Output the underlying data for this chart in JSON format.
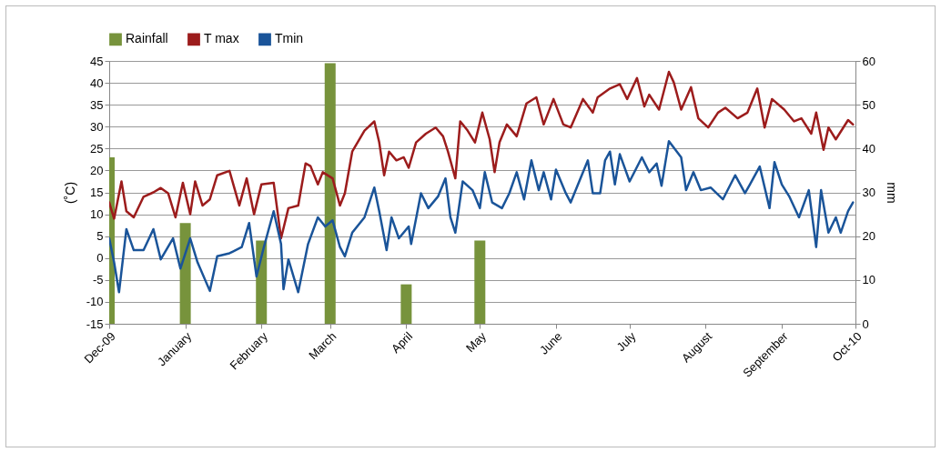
{
  "chart_data": {
    "type": "line",
    "ylabel": "(˚C)",
    "y2label": "mm",
    "legend": "top",
    "grid": "y",
    "xlim": [
      "2009-12-01",
      "2010-10-01"
    ],
    "xticks": [
      {
        "value": "2009-12-01",
        "label": "Dec-09"
      },
      {
        "value": "2010-01-01",
        "label": "January"
      },
      {
        "value": "2010-02-01",
        "label": "February"
      },
      {
        "value": "2010-03-01",
        "label": "March"
      },
      {
        "value": "2010-04-01",
        "label": "April"
      },
      {
        "value": "2010-05-01",
        "label": "May"
      },
      {
        "value": "2010-06-01",
        "label": "June"
      },
      {
        "value": "2010-07-01",
        "label": "July"
      },
      {
        "value": "2010-08-01",
        "label": "August"
      },
      {
        "value": "2010-09-01",
        "label": "September"
      },
      {
        "value": "2010-10-01",
        "label": "Oct-10"
      }
    ],
    "ylim": [
      -15,
      45
    ],
    "yticks": [
      -15,
      -10,
      -5,
      0,
      5,
      10,
      15,
      20,
      25,
      30,
      35,
      40,
      45
    ],
    "y2lim": [
      0,
      60
    ],
    "y2ticks": [
      0,
      10,
      20,
      30,
      40,
      50,
      60
    ],
    "series": [
      {
        "name": "Rainfall",
        "type": "bar",
        "axis": "y2",
        "color": "#77933c",
        "x": [
          "2009-12-01",
          "2010-01-01",
          "2010-02-01",
          "2010-03-01",
          "2010-04-01",
          "2010-05-01"
        ],
        "values": [
          38,
          23,
          19,
          59.5,
          9,
          19
        ]
      },
      {
        "name": "T max",
        "color": "#9c1c1c",
        "x": [
          "2009-12-01",
          "2009-12-03",
          "2009-12-06",
          "2009-12-08",
          "2009-12-11",
          "2009-12-15",
          "2009-12-19",
          "2009-12-22",
          "2009-12-25",
          "2009-12-28",
          "2009-12-31",
          "2010-01-03",
          "2010-01-05",
          "2010-01-08",
          "2010-01-11",
          "2010-01-14",
          "2010-01-19",
          "2010-01-23",
          "2010-01-26",
          "2010-01-29",
          "2010-02-01",
          "2010-02-06",
          "2010-02-09",
          "2010-02-12",
          "2010-02-16",
          "2010-02-19",
          "2010-02-21",
          "2010-02-24",
          "2010-02-26",
          "2010-03-02",
          "2010-03-05",
          "2010-03-07",
          "2010-03-10",
          "2010-03-15",
          "2010-03-19",
          "2010-03-21",
          "2010-03-23",
          "2010-03-25",
          "2010-03-28",
          "2010-03-31",
          "2010-04-02",
          "2010-04-05",
          "2010-04-09",
          "2010-04-13",
          "2010-04-16",
          "2010-04-18",
          "2010-04-21",
          "2010-04-23",
          "2010-04-26",
          "2010-04-29",
          "2010-05-02",
          "2010-05-05",
          "2010-05-07",
          "2010-05-09",
          "2010-05-12",
          "2010-05-16",
          "2010-05-20",
          "2010-05-24",
          "2010-05-27",
          "2010-05-31",
          "2010-06-04",
          "2010-06-07",
          "2010-06-12",
          "2010-06-16",
          "2010-06-18",
          "2010-06-23",
          "2010-06-27",
          "2010-06-30",
          "2010-07-04",
          "2010-07-07",
          "2010-07-09",
          "2010-07-13",
          "2010-07-17",
          "2010-07-19",
          "2010-07-22",
          "2010-07-26",
          "2010-07-29",
          "2010-08-02",
          "2010-08-06",
          "2010-08-09",
          "2010-08-14",
          "2010-08-18",
          "2010-08-22",
          "2010-08-25",
          "2010-08-28",
          "2010-09-02",
          "2010-09-06",
          "2010-09-09",
          "2010-09-13",
          "2010-09-15",
          "2010-09-18",
          "2010-09-20",
          "2010-09-23",
          "2010-09-28",
          "2010-09-30"
        ],
        "values": [
          12.7,
          9,
          17.5,
          10.7,
          9.3,
          14,
          15,
          16,
          14.8,
          9.3,
          17.2,
          10,
          17.5,
          12,
          13.4,
          18.9,
          19.9,
          12,
          18.2,
          10,
          16.8,
          17.2,
          4.5,
          11.4,
          12,
          21.6,
          21,
          16.8,
          19.6,
          18.2,
          12,
          14.8,
          24.3,
          29.1,
          31.2,
          26.4,
          18.9,
          24.3,
          22.3,
          23,
          20.6,
          26.4,
          28.4,
          29.8,
          27.8,
          24.3,
          18.2,
          31.2,
          29.1,
          26.4,
          33.2,
          27.1,
          19.6,
          26.4,
          30.5,
          27.8,
          35.3,
          36.7,
          30.5,
          36.3,
          30.5,
          29.8,
          36.3,
          33.2,
          36.7,
          38.7,
          39.7,
          36.3,
          41.1,
          34.6,
          37.3,
          33.9,
          42.5,
          40.1,
          33.9,
          39,
          31.9,
          29.8,
          33.2,
          34.3,
          31.9,
          33.2,
          38.7,
          29.8,
          36.3,
          33.9,
          31.2,
          31.9,
          28.4,
          33.2,
          24.7,
          29.8,
          27.1,
          31.5,
          30.5
        ]
      },
      {
        "name": "Tmin",
        "color": "#1a5499",
        "x": [
          "2009-12-01",
          "2009-12-03",
          "2009-12-05",
          "2009-12-08",
          "2009-12-11",
          "2009-12-15",
          "2009-12-19",
          "2009-12-22",
          "2009-12-27",
          "2009-12-30",
          "2010-01-03",
          "2010-01-06",
          "2010-01-11",
          "2010-01-14",
          "2010-01-19",
          "2010-01-24",
          "2010-01-27",
          "2010-01-30",
          "2010-02-02",
          "2010-02-06",
          "2010-02-09",
          "2010-02-10",
          "2010-02-12",
          "2010-02-16",
          "2010-02-20",
          "2010-02-24",
          "2010-02-27",
          "2010-03-02",
          "2010-03-05",
          "2010-03-07",
          "2010-03-10",
          "2010-03-15",
          "2010-03-19",
          "2010-03-21",
          "2010-03-24",
          "2010-03-26",
          "2010-03-29",
          "2010-04-02",
          "2010-04-03",
          "2010-04-07",
          "2010-04-10",
          "2010-04-14",
          "2010-04-17",
          "2010-04-19",
          "2010-04-21",
          "2010-04-24",
          "2010-04-28",
          "2010-05-01",
          "2010-05-03",
          "2010-05-06",
          "2010-05-10",
          "2010-05-13",
          "2010-05-16",
          "2010-05-19",
          "2010-05-22",
          "2010-05-25",
          "2010-05-27",
          "2010-05-30",
          "2010-06-01",
          "2010-06-05",
          "2010-06-07",
          "2010-06-11",
          "2010-06-14",
          "2010-06-16",
          "2010-06-19",
          "2010-06-21",
          "2010-06-23",
          "2010-06-25",
          "2010-06-27",
          "2010-07-01",
          "2010-07-06",
          "2010-07-09",
          "2010-07-12",
          "2010-07-14",
          "2010-07-17",
          "2010-07-22",
          "2010-07-24",
          "2010-07-27",
          "2010-07-30",
          "2010-08-03",
          "2010-08-08",
          "2010-08-13",
          "2010-08-17",
          "2010-08-19",
          "2010-08-23",
          "2010-08-27",
          "2010-08-29",
          "2010-09-01",
          "2010-09-04",
          "2010-09-08",
          "2010-09-12",
          "2010-09-15",
          "2010-09-17",
          "2010-09-20",
          "2010-09-23",
          "2010-09-25",
          "2010-09-28",
          "2010-09-30"
        ],
        "values": [
          4.5,
          -1,
          -7.8,
          6.6,
          1.8,
          1.8,
          6.6,
          -0.3,
          4.5,
          -2.4,
          4.5,
          -1,
          -7.5,
          0.4,
          1.1,
          2.5,
          8,
          -4.2,
          2.5,
          10.7,
          3.2,
          -7.1,
          -0.3,
          -7.8,
          3.2,
          9.3,
          7.2,
          8.6,
          2.5,
          0.4,
          5.8,
          9.3,
          16.1,
          10.7,
          1.8,
          9.3,
          4.5,
          7.2,
          3.2,
          14.8,
          11.4,
          14.1,
          18.2,
          9.3,
          5.8,
          17.5,
          15.5,
          11.4,
          19.6,
          12.7,
          11.4,
          14.8,
          19.6,
          13.4,
          22.3,
          15.5,
          19.6,
          13.4,
          20.2,
          14.8,
          12.7,
          18.2,
          22.3,
          14.8,
          14.8,
          22.3,
          24.3,
          16.8,
          23.7,
          17.5,
          23,
          19.6,
          21.6,
          16.5,
          26.7,
          23,
          15.5,
          19.6,
          15.5,
          16.1,
          13.4,
          18.9,
          14.8,
          16.8,
          20.9,
          11.4,
          21.9,
          16.8,
          14.1,
          9.3,
          15.5,
          2.5,
          15.5,
          5.8,
          9.3,
          5.8,
          10.7,
          12.7
        ]
      }
    ]
  }
}
